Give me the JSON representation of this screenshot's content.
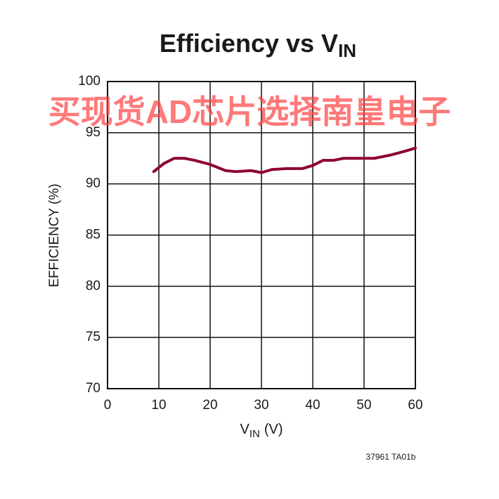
{
  "chart_data": {
    "type": "line",
    "title": "Efficiency vs V",
    "title_subscript": "IN",
    "x_label": "V",
    "x_label_subscript": "IN",
    "x_label_unit": "(V)",
    "y_label": "EFFICIENCY (%)",
    "watermark": "买现货AD芯片选择南皇电子",
    "figure_id": "37961 TA01b",
    "x": [
      9,
      11,
      13,
      15,
      17,
      20,
      23,
      25,
      28,
      30,
      32,
      35,
      38,
      40,
      42,
      44,
      46,
      50,
      52,
      55,
      58,
      60
    ],
    "series": [
      {
        "color": "#8e0033",
        "values": [
          91.2,
          92.0,
          92.5,
          92.5,
          92.3,
          91.9,
          91.3,
          91.2,
          91.3,
          91.1,
          91.4,
          91.5,
          91.5,
          91.8,
          92.3,
          92.3,
          92.5,
          92.5,
          92.5,
          92.8,
          93.2,
          93.5
        ]
      }
    ],
    "xlim": [
      0,
      60
    ],
    "xticks": [
      0,
      10,
      20,
      30,
      40,
      50,
      60
    ],
    "ylim": [
      70,
      100
    ],
    "yticks": [
      70,
      75,
      80,
      85,
      90,
      95,
      100
    ],
    "grid": true
  }
}
